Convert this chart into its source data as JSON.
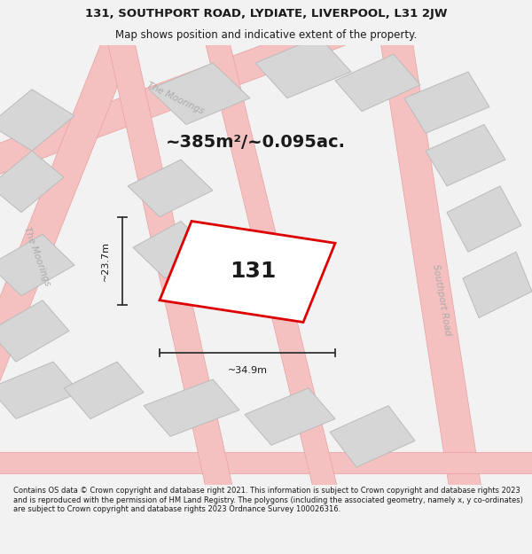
{
  "title_line1": "131, SOUTHPORT ROAD, LYDIATE, LIVERPOOL, L31 2JW",
  "title_line2": "Map shows position and indicative extent of the property.",
  "area_text": "~385m²/~0.095ac.",
  "label_131": "131",
  "dim_width": "~34.9m",
  "dim_height": "~23.7m",
  "footer_text": "Contains OS data © Crown copyright and database right 2021. This information is subject to Crown copyright and database rights 2023 and is reproduced with the permission of HM Land Registry. The polygons (including the associated geometry, namely x, y co-ordinates) are subject to Crown copyright and database rights 2023 Ordnance Survey 100026316.",
  "bg_color": "#f2f2f2",
  "map_bg": "#ffffff",
  "road_color_fill": "#f5c0c0",
  "road_color_edge": "#e8a0a0",
  "building_fill": "#d6d6d6",
  "building_edge": "#bbbbbb",
  "highlight_fill": "#ffffff",
  "highlight_edge": "#dd0000",
  "road_label_color": "#aaaaaa",
  "dim_line_color": "#333333",
  "text_color": "#1a1a1a",
  "title_fontsize": 9.5,
  "subtitle_fontsize": 8.5,
  "area_fontsize": 14,
  "label_fontsize": 18,
  "dim_fontsize": 8,
  "road_label_fontsize": 7.5,
  "footer_fontsize": 6.0
}
